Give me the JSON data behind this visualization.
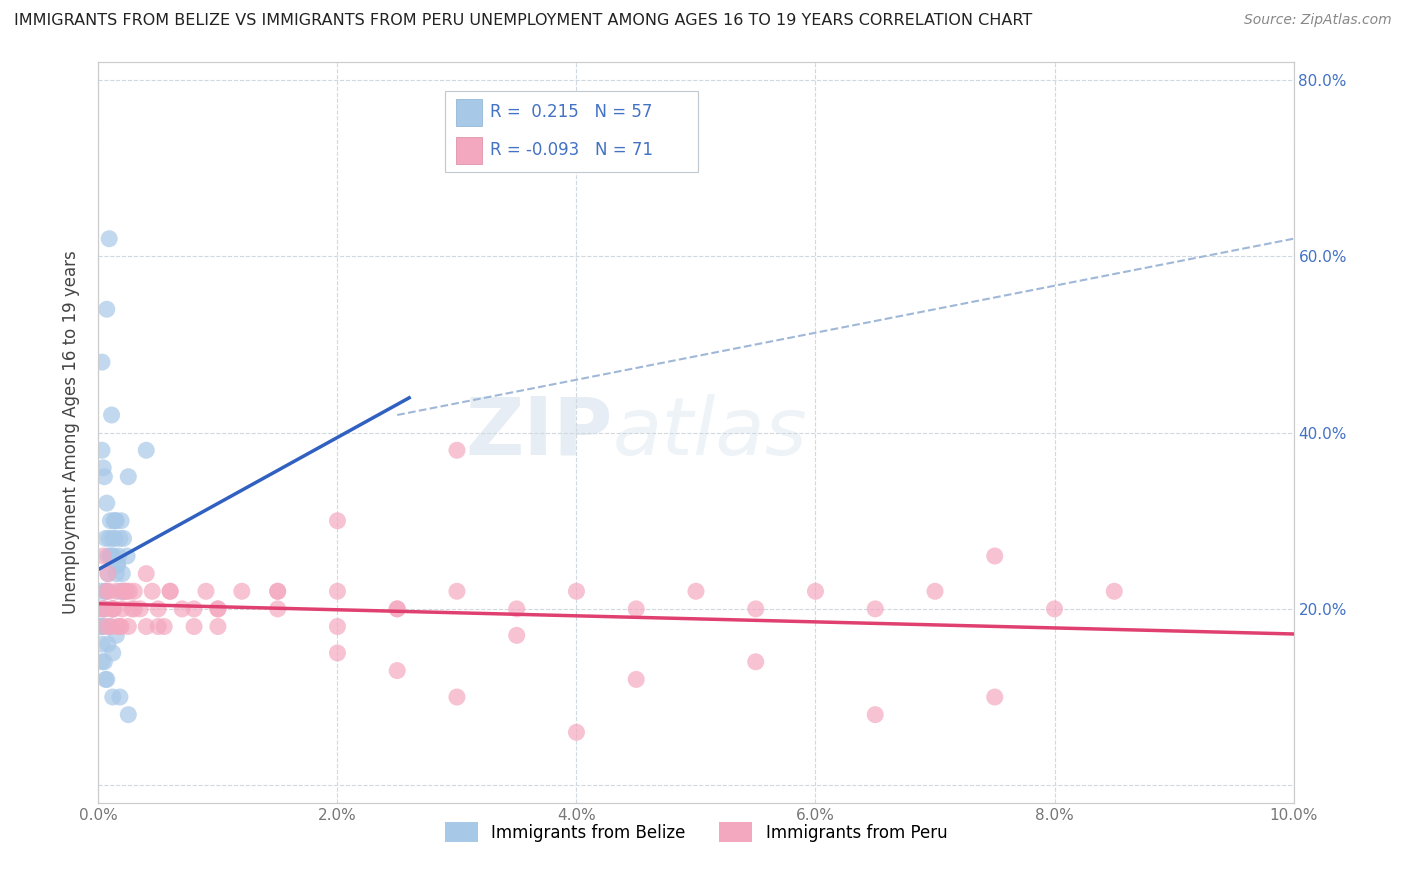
{
  "title": "IMMIGRANTS FROM BELIZE VS IMMIGRANTS FROM PERU UNEMPLOYMENT AMONG AGES 16 TO 19 YEARS CORRELATION CHART",
  "source": "Source: ZipAtlas.com",
  "ylabel": "Unemployment Among Ages 16 to 19 years",
  "legend_label1": "Immigrants from Belize",
  "legend_label2": "Immigrants from Peru",
  "R1": 0.215,
  "N1": 57,
  "R2": -0.093,
  "N2": 71,
  "color_belize": "#a8c8e8",
  "color_peru": "#f4a8c0",
  "line_color_belize": "#3060c0",
  "line_color_peru": "#e04070",
  "dash_line_color": "#a0b8d8",
  "xlim": [
    0.0,
    0.1
  ],
  "ylim": [
    -0.02,
    0.82
  ],
  "xticks": [
    0.0,
    0.02,
    0.04,
    0.06,
    0.08,
    0.1
  ],
  "yticks": [
    0.0,
    0.2,
    0.4,
    0.6,
    0.8
  ],
  "xticklabels": [
    "0.0%",
    "2.0%",
    "4.0%",
    "6.0%",
    "8.0%",
    "10.0%"
  ],
  "right_yticklabels": [
    "",
    "20.0%",
    "40.0%",
    "60.0%",
    "80.0%"
  ],
  "watermark_zip": "ZIP",
  "watermark_atlas": "atlas",
  "belize_x": [
    0.0018,
    0.0012,
    0.0008,
    0.0015,
    0.001,
    0.0006,
    0.0005,
    0.0007,
    0.0004,
    0.0003,
    0.0009,
    0.0011,
    0.0013,
    0.0016,
    0.002,
    0.0014,
    0.0017,
    0.0019,
    0.0021,
    0.0025,
    0.0005,
    0.0004,
    0.0006,
    0.0008,
    0.001,
    0.0012,
    0.0014,
    0.0016,
    0.0003,
    0.0007,
    0.0009,
    0.0011,
    0.0018,
    0.0015,
    0.0013,
    0.002,
    0.0022,
    0.0024,
    0.0004,
    0.0006,
    0.0002,
    0.0003,
    0.0001,
    0.0001,
    0.0002,
    0.0005,
    0.0008,
    0.001,
    0.0012,
    0.0015,
    0.004,
    0.0012,
    0.0007,
    0.0003,
    0.0025,
    0.0018,
    0.0006
  ],
  "belize_y": [
    0.22,
    0.2,
    0.26,
    0.24,
    0.3,
    0.28,
    0.35,
    0.32,
    0.36,
    0.38,
    0.28,
    0.26,
    0.3,
    0.25,
    0.22,
    0.28,
    0.26,
    0.3,
    0.28,
    0.35,
    0.2,
    0.18,
    0.22,
    0.24,
    0.26,
    0.28,
    0.3,
    0.25,
    0.48,
    0.54,
    0.62,
    0.42,
    0.28,
    0.3,
    0.26,
    0.24,
    0.22,
    0.26,
    0.2,
    0.22,
    0.18,
    0.16,
    0.2,
    0.18,
    0.22,
    0.14,
    0.16,
    0.18,
    0.15,
    0.17,
    0.38,
    0.1,
    0.12,
    0.14,
    0.08,
    0.1,
    0.12
  ],
  "peru_x": [
    0.0005,
    0.001,
    0.0015,
    0.002,
    0.0025,
    0.003,
    0.0008,
    0.0012,
    0.0018,
    0.0022,
    0.0028,
    0.0004,
    0.0007,
    0.0011,
    0.0016,
    0.0024,
    0.0003,
    0.0006,
    0.0009,
    0.0013,
    0.0019,
    0.0026,
    0.0035,
    0.004,
    0.0045,
    0.005,
    0.0055,
    0.006,
    0.007,
    0.008,
    0.009,
    0.01,
    0.012,
    0.015,
    0.02,
    0.025,
    0.03,
    0.035,
    0.04,
    0.045,
    0.05,
    0.055,
    0.06,
    0.065,
    0.07,
    0.075,
    0.08,
    0.085,
    0.03,
    0.025,
    0.02,
    0.015,
    0.01,
    0.005,
    0.002,
    0.003,
    0.004,
    0.006,
    0.008,
    0.01,
    0.015,
    0.02,
    0.025,
    0.035,
    0.045,
    0.055,
    0.065,
    0.075,
    0.02,
    0.03,
    0.04
  ],
  "peru_y": [
    0.2,
    0.18,
    0.22,
    0.2,
    0.18,
    0.22,
    0.24,
    0.2,
    0.18,
    0.22,
    0.2,
    0.26,
    0.22,
    0.2,
    0.18,
    0.22,
    0.2,
    0.18,
    0.22,
    0.2,
    0.18,
    0.22,
    0.2,
    0.24,
    0.22,
    0.2,
    0.18,
    0.22,
    0.2,
    0.18,
    0.22,
    0.2,
    0.22,
    0.2,
    0.22,
    0.2,
    0.22,
    0.2,
    0.22,
    0.2,
    0.22,
    0.2,
    0.22,
    0.2,
    0.22,
    0.26,
    0.2,
    0.22,
    0.38,
    0.2,
    0.18,
    0.22,
    0.2,
    0.18,
    0.22,
    0.2,
    0.18,
    0.22,
    0.2,
    0.18,
    0.22,
    0.15,
    0.13,
    0.17,
    0.12,
    0.14,
    0.08,
    0.1,
    0.3,
    0.1,
    0.06
  ]
}
